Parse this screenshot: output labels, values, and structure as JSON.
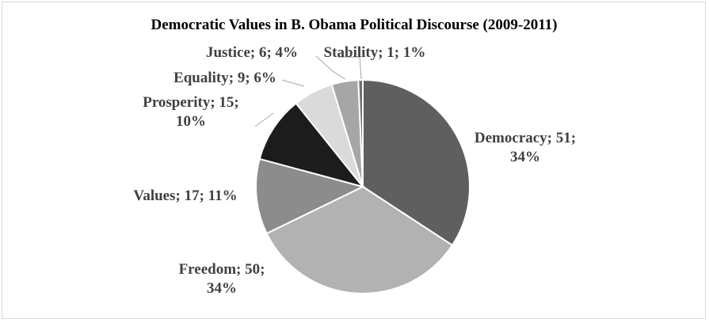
{
  "chart_data": {
    "type": "pie",
    "title": "Democratic Values in B. Obama Political Discourse (2009-2011)",
    "slices": [
      {
        "name": "Democracy",
        "value": 51,
        "percent": "34%",
        "color": "#5f5f5f",
        "label_lines": [
          "Democracy; 51;",
          "34%"
        ]
      },
      {
        "name": "Freedom",
        "value": 50,
        "percent": "34%",
        "color": "#b2b2b2",
        "label_lines": [
          "Freedom; 50;",
          "34%"
        ]
      },
      {
        "name": "Values",
        "value": 17,
        "percent": "11%",
        "color": "#8c8c8c",
        "label_lines": [
          "Values; 17; 11%"
        ]
      },
      {
        "name": "Prosperity",
        "value": 15,
        "percent": "10%",
        "color": "#1c1c1c",
        "label_lines": [
          "Prosperity; 15;",
          "10%"
        ]
      },
      {
        "name": "Equality",
        "value": 9,
        "percent": "6%",
        "color": "#dadada",
        "label_lines": [
          "Equality; 9; 6%"
        ]
      },
      {
        "name": "Justice",
        "value": 6,
        "percent": "4%",
        "color": "#a6a6a6",
        "label_lines": [
          "Justice; 6; 4%"
        ]
      },
      {
        "name": "Stability",
        "value": 1,
        "percent": "1%",
        "color": "#6f6f6f",
        "label_lines": [
          "Stability; 1; 1%"
        ]
      }
    ]
  }
}
